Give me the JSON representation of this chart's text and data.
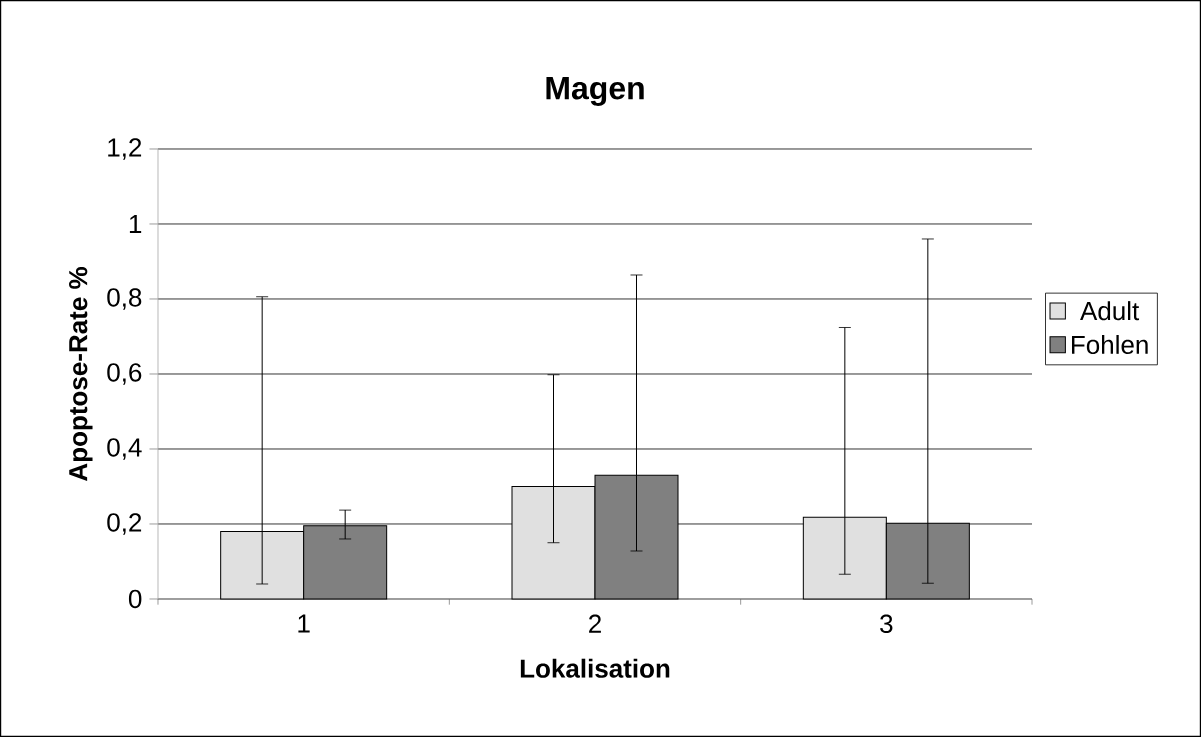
{
  "chart_data": {
    "type": "bar",
    "title": "Magen",
    "xlabel": "Lokalisation",
    "ylabel": "Apoptose-Rate %",
    "categories": [
      "1",
      "2",
      "3"
    ],
    "series": [
      {
        "name": "Adult",
        "color": "#e0e0e0",
        "values": [
          0.18,
          0.3,
          0.218
        ],
        "errors": [
          [
            0.04,
            0.806
          ],
          [
            0.15,
            0.598
          ],
          [
            0.066,
            0.724
          ]
        ]
      },
      {
        "name": "Fohlen",
        "color": "#808080",
        "values": [
          0.195,
          0.33,
          0.202
        ],
        "errors": [
          [
            0.16,
            0.237
          ],
          [
            0.128,
            0.864
          ],
          [
            0.042,
            0.96
          ]
        ]
      }
    ],
    "ylim": [
      0,
      1.2
    ],
    "yticks": [
      0,
      {
        "value": 0.2,
        "label": "0,2"
      },
      {
        "value": 0.4,
        "label": "0,4"
      },
      {
        "value": 0.6,
        "label": "0,6"
      },
      {
        "value": 0.8,
        "label": "0,8"
      },
      1,
      {
        "value": 1.2,
        "label": "1,2"
      }
    ],
    "grid": "y",
    "legend": "right"
  }
}
